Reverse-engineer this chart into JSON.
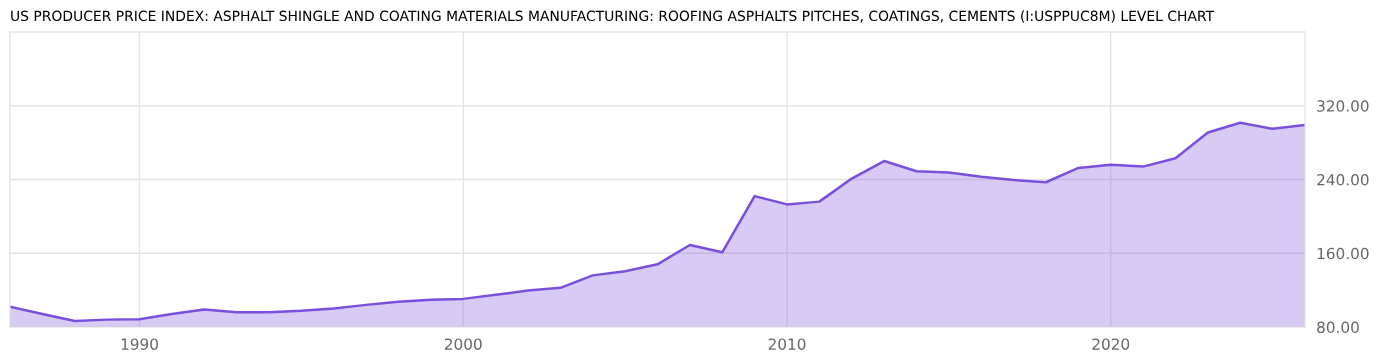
{
  "chart_data": {
    "type": "area",
    "title": "US PRODUCER PRICE INDEX: ASPHALT SHINGLE AND COATING MATERIALS MANUFACTURING: ROOFING ASPHALTS PITCHES, COATINGS, CEMENTS (I:USPPUC8M) LEVEL CHART",
    "x": [
      1986,
      1987,
      1988,
      1989,
      1990,
      1991,
      1992,
      1993,
      1994,
      1995,
      1996,
      1997,
      1998,
      1999,
      2000,
      2001,
      2002,
      2003,
      2004,
      2005,
      2006,
      2007,
      2008,
      2009,
      2010,
      2011,
      2012,
      2013,
      2014,
      2015,
      2016,
      2017,
      2018,
      2019,
      2020,
      2021,
      2022,
      2023,
      2024,
      2025,
      2026
    ],
    "series": [
      {
        "color": "#7a4fdb",
        "values": [
          102,
          94,
          86.5,
          88,
          88.5,
          94,
          99,
          96,
          96,
          97.5,
          100,
          104,
          107.5,
          109.5,
          110.5,
          115,
          119.5,
          122.5,
          136,
          140.5,
          148,
          169,
          161,
          222,
          213,
          216,
          241,
          260,
          249,
          247.5,
          243,
          239.5,
          237,
          252.5,
          256,
          254,
          263,
          291,
          301.5,
          295,
          299
        ]
      }
    ],
    "xlim": [
      1986,
      2026
    ],
    "ylim": [
      80,
      400
    ],
    "xticks": [
      1990,
      2000,
      2010,
      2020
    ],
    "yticks": [
      {
        "value": 80,
        "label": "80.00"
      },
      {
        "value": 160,
        "label": "160.00"
      },
      {
        "value": 240,
        "label": "240.00"
      },
      {
        "value": 320,
        "label": "320.00"
      }
    ],
    "grid": true
  }
}
